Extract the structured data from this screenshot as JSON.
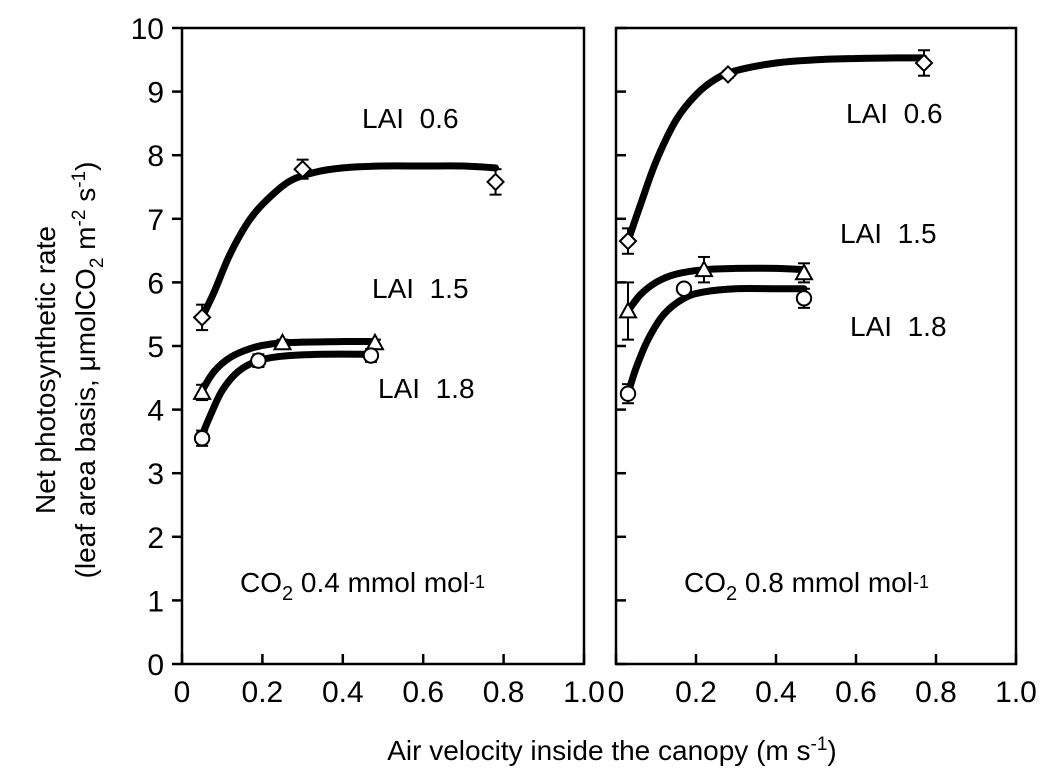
{
  "chart_data": [
    {
      "type": "line",
      "panel": "left",
      "annotation": {
        "main": "CO",
        "sub": "2",
        "rest": " 0.4 mmol mol",
        "sup": "-1"
      },
      "xlim": [
        0,
        1.0
      ],
      "ylim": [
        0,
        10
      ],
      "x_ticks": [
        "0",
        "0.2",
        "0.4",
        "0.6",
        "0.8",
        "1.0"
      ],
      "y_ticks": [
        "0",
        "1",
        "2",
        "3",
        "4",
        "5",
        "6",
        "7",
        "8",
        "9",
        "10"
      ],
      "series": [
        {
          "name": "LAI  0.6",
          "marker": "diamond",
          "x": [
            0.05,
            0.3,
            0.78
          ],
          "y": [
            5.45,
            7.78,
            7.58
          ],
          "err": [
            0.2,
            0.15,
            0.2
          ],
          "curve": [
            [
              0.05,
              5.45
            ],
            [
              0.08,
              5.85
            ],
            [
              0.12,
              6.45
            ],
            [
              0.17,
              7.0
            ],
            [
              0.22,
              7.35
            ],
            [
              0.27,
              7.6
            ],
            [
              0.33,
              7.73
            ],
            [
              0.4,
              7.8
            ],
            [
              0.5,
              7.83
            ],
            [
              0.6,
              7.83
            ],
            [
              0.7,
              7.83
            ],
            [
              0.78,
              7.8
            ]
          ]
        },
        {
          "name": "LAI  1.5",
          "marker": "triangle",
          "x": [
            0.05,
            0.25,
            0.48
          ],
          "y": [
            4.27,
            5.05,
            5.05
          ],
          "err": [
            0.12,
            0.05,
            0.05
          ],
          "curve": [
            [
              0.05,
              4.3
            ],
            [
              0.08,
              4.6
            ],
            [
              0.12,
              4.82
            ],
            [
              0.17,
              4.96
            ],
            [
              0.22,
              5.03
            ],
            [
              0.3,
              5.06
            ],
            [
              0.4,
              5.07
            ],
            [
              0.48,
              5.07
            ]
          ]
        },
        {
          "name": "LAI  1.8",
          "marker": "circle",
          "x": [
            0.05,
            0.19,
            0.47
          ],
          "y": [
            3.55,
            4.77,
            4.85
          ],
          "err": [
            0.12,
            0.1,
            0.1
          ],
          "curve": [
            [
              0.05,
              3.6
            ],
            [
              0.07,
              3.9
            ],
            [
              0.1,
              4.3
            ],
            [
              0.14,
              4.6
            ],
            [
              0.19,
              4.77
            ],
            [
              0.25,
              4.84
            ],
            [
              0.35,
              4.87
            ],
            [
              0.47,
              4.87
            ]
          ]
        }
      ],
      "labels": [
        "LAI  0.6",
        "LAI  1.5",
        "LAI  1.8"
      ]
    },
    {
      "type": "line",
      "panel": "right",
      "annotation": {
        "main": "CO",
        "sub": "2",
        "rest": " 0.8 mmol mol",
        "sup": "-1"
      },
      "xlim": [
        0,
        1.0
      ],
      "ylim": [
        0,
        10
      ],
      "x_ticks": [
        "0",
        "0.2",
        "0.4",
        "0.6",
        "0.8",
        "1.0"
      ],
      "series": [
        {
          "name": "LAI  0.6",
          "marker": "diamond",
          "x": [
            0.03,
            0.28,
            0.77
          ],
          "y": [
            6.65,
            9.27,
            9.45
          ],
          "err": [
            0.2,
            0.05,
            0.2
          ],
          "curve": [
            [
              0.03,
              6.65
            ],
            [
              0.06,
              7.2
            ],
            [
              0.1,
              7.9
            ],
            [
              0.15,
              8.55
            ],
            [
              0.2,
              8.95
            ],
            [
              0.25,
              9.2
            ],
            [
              0.3,
              9.33
            ],
            [
              0.4,
              9.45
            ],
            [
              0.5,
              9.5
            ],
            [
              0.6,
              9.52
            ],
            [
              0.7,
              9.53
            ],
            [
              0.77,
              9.53
            ]
          ]
        },
        {
          "name": "LAI  1.5",
          "marker": "triangle",
          "x": [
            0.03,
            0.22,
            0.47
          ],
          "y": [
            5.55,
            6.2,
            6.15
          ],
          "err": [
            0.45,
            0.2,
            0.15
          ],
          "curve": [
            [
              0.03,
              5.55
            ],
            [
              0.06,
              5.8
            ],
            [
              0.1,
              6.0
            ],
            [
              0.15,
              6.13
            ],
            [
              0.22,
              6.2
            ],
            [
              0.3,
              6.22
            ],
            [
              0.4,
              6.22
            ],
            [
              0.47,
              6.2
            ]
          ]
        },
        {
          "name": "LAI  1.8",
          "marker": "circle",
          "x": [
            0.03,
            0.17,
            0.47
          ],
          "y": [
            4.25,
            5.9,
            5.75
          ],
          "err": [
            0.15,
            0.05,
            0.15
          ],
          "curve": [
            [
              0.03,
              4.25
            ],
            [
              0.05,
              4.65
            ],
            [
              0.08,
              5.1
            ],
            [
              0.12,
              5.5
            ],
            [
              0.17,
              5.75
            ],
            [
              0.22,
              5.85
            ],
            [
              0.3,
              5.9
            ],
            [
              0.4,
              5.9
            ],
            [
              0.47,
              5.9
            ]
          ]
        }
      ],
      "labels": [
        "LAI  0.6",
        "LAI  1.5",
        "LAI  1.8"
      ]
    }
  ],
  "axes": {
    "ylabel_line1": "Net photosynthetic rate",
    "ylabel_line2": {
      "pre": "(leaf area basis, ",
      "mu": "μ",
      "mid": "molCO",
      "sub": "2",
      "mid2": " m",
      "sup1": "-2",
      "mid3": " s",
      "sup2": "-1",
      "post": ")"
    },
    "xlabel": {
      "pre": "Air velocity inside the canopy (m s",
      "sup": "-1",
      "post": ")"
    }
  }
}
